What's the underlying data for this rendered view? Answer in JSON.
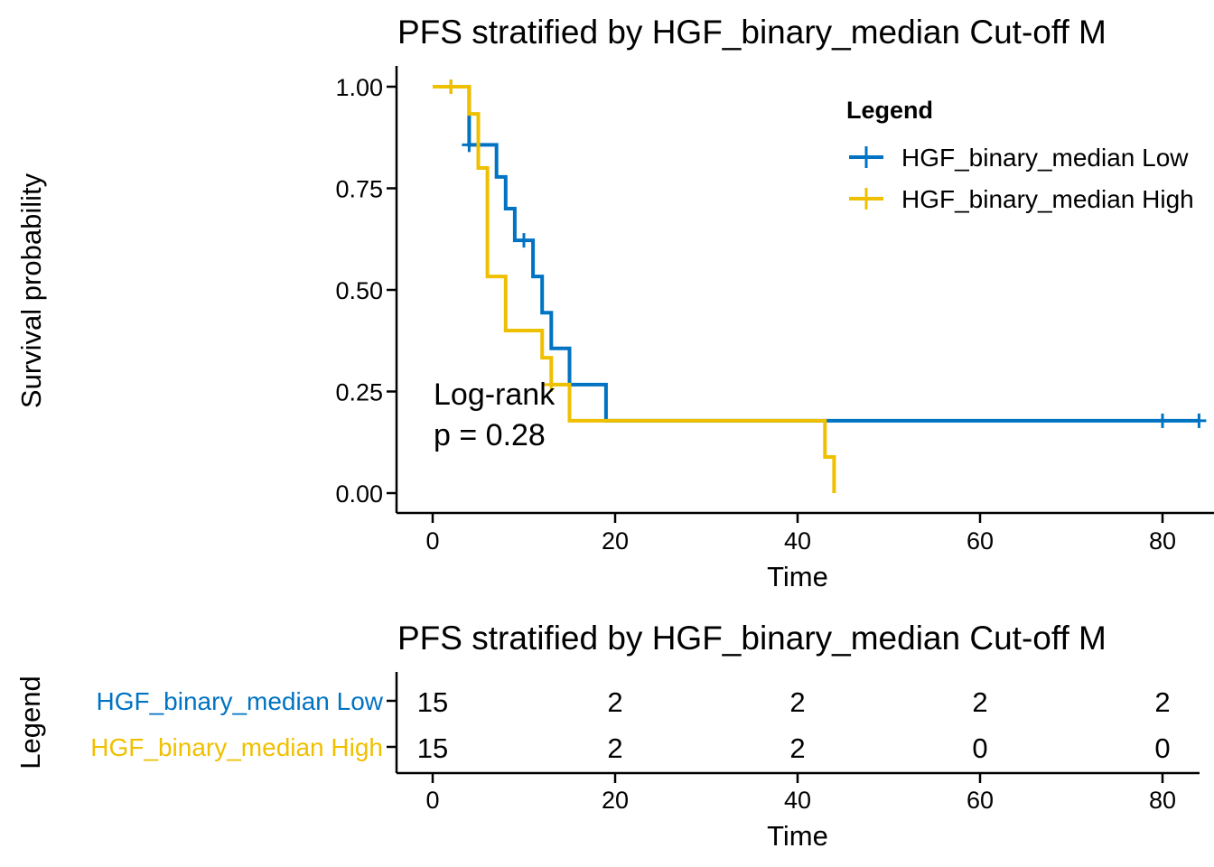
{
  "colors": {
    "low": "#0073C2",
    "high": "#EFC000",
    "axis": "#000000",
    "text": "#000000"
  },
  "chart_data": [
    {
      "type": "line",
      "chart_kind": "kaplan-meier",
      "title": "PFS stratified by HGF_binary_median Cut-off M",
      "xlabel": "Time",
      "ylabel": "Survival probability",
      "xlim": [
        -4,
        85
      ],
      "ylim": [
        -0.05,
        1.05
      ],
      "x_ticks": [
        0,
        20,
        40,
        60,
        80
      ],
      "x_tick_labels": [
        "0",
        "20",
        "40",
        "60",
        "80"
      ],
      "y_ticks": [
        0,
        0.25,
        0.5,
        0.75,
        1
      ],
      "y_tick_labels": [
        "0.00",
        "0.25",
        "0.50",
        "0.75",
        "1.00"
      ],
      "grid": false,
      "legend": {
        "title": "Legend",
        "placement": "top-right",
        "entries": [
          "HGF_binary_median Low",
          "HGF_binary_median High"
        ]
      },
      "annotation": {
        "lines": [
          "Log-rank",
          "p = 0.28"
        ],
        "x": 0,
        "y": 0.2
      },
      "series": [
        {
          "name": "HGF_binary_median Low",
          "color": "#0073C2",
          "steps": [
            [
              0,
              1.0
            ],
            [
              4,
              0.857
            ],
            [
              7,
              0.778
            ],
            [
              8,
              0.7
            ],
            [
              9,
              0.622
            ],
            [
              11,
              0.533
            ],
            [
              12,
              0.444
            ],
            [
              13,
              0.356
            ],
            [
              15,
              0.267
            ],
            [
              19,
              0.178
            ],
            [
              84,
              0.178
            ]
          ],
          "censored": [
            [
              2,
              1.0
            ],
            [
              4,
              0.857
            ],
            [
              10,
              0.622
            ],
            [
              80,
              0.178
            ],
            [
              84,
              0.178
            ]
          ]
        },
        {
          "name": "HGF_binary_median High",
          "color": "#EFC000",
          "steps": [
            [
              0,
              1.0
            ],
            [
              4,
              0.933
            ],
            [
              5,
              0.8
            ],
            [
              6,
              0.533
            ],
            [
              8,
              0.4
            ],
            [
              12,
              0.333
            ],
            [
              13,
              0.267
            ],
            [
              15,
              0.178
            ],
            [
              43,
              0.089
            ],
            [
              44,
              0.0
            ]
          ],
          "censored": [
            [
              2,
              1.0
            ],
            [
              13,
              0.267
            ]
          ]
        }
      ]
    },
    {
      "type": "table",
      "chart_kind": "risk-table",
      "title": "PFS stratified by HGF_binary_median Cut-off M",
      "xlabel": "Time",
      "ylabel": "Legend",
      "xlim": [
        -4,
        85
      ],
      "x_ticks": [
        0,
        20,
        40,
        60,
        80
      ],
      "x_tick_labels": [
        "0",
        "20",
        "40",
        "60",
        "80"
      ],
      "rows": [
        {
          "name": "HGF_binary_median Low",
          "color": "#0073C2",
          "counts": [
            "15",
            "2",
            "2",
            "2",
            "2"
          ]
        },
        {
          "name": "HGF_binary_median High",
          "color": "#EFC000",
          "counts": [
            "15",
            "2",
            "2",
            "0",
            "0"
          ]
        }
      ]
    }
  ]
}
